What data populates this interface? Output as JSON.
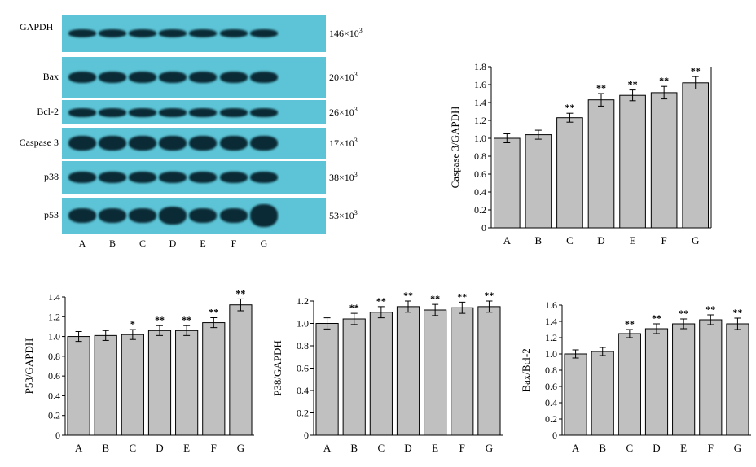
{
  "blot": {
    "rows": [
      {
        "label": "GAPDH",
        "mw": "146×10",
        "exp": "3"
      },
      {
        "label": "Bax",
        "mw": "20×10",
        "exp": "3"
      },
      {
        "label": "Bcl-2",
        "mw": "26×10",
        "exp": "3"
      },
      {
        "label": "Caspase 3",
        "mw": "17×10",
        "exp": "3"
      },
      {
        "label": "p38",
        "mw": "38×10",
        "exp": "3"
      },
      {
        "label": "p53",
        "mw": "53×10",
        "exp": "3"
      }
    ],
    "lanes": [
      "A",
      "B",
      "C",
      "D",
      "E",
      "F",
      "G"
    ],
    "colors": {
      "background": "#5cc4d6",
      "band": "#0a2a35"
    }
  },
  "chart_data": [
    {
      "type": "bar",
      "ylabel": "Caspase 3/GAPDH",
      "categories": [
        "A",
        "B",
        "C",
        "D",
        "E",
        "F",
        "G"
      ],
      "values": [
        1.0,
        1.04,
        1.23,
        1.43,
        1.48,
        1.51,
        1.62
      ],
      "errors": [
        0.05,
        0.05,
        0.05,
        0.07,
        0.06,
        0.07,
        0.07
      ],
      "annotations": [
        "",
        "",
        "**",
        "**",
        "**",
        "**",
        "**"
      ],
      "ylim": [
        0,
        1.8
      ],
      "yticks": [
        "0",
        "0.2",
        "0.4",
        "0.6",
        "0.8",
        "1.0",
        "1.2",
        "1.4",
        "1.6",
        "1.8"
      ],
      "bar_color": "#c0c0c0"
    },
    {
      "type": "bar",
      "ylabel": "P53/GAPDH",
      "categories": [
        "A",
        "B",
        "C",
        "D",
        "E",
        "F",
        "G"
      ],
      "values": [
        1.0,
        1.01,
        1.02,
        1.06,
        1.06,
        1.14,
        1.32
      ],
      "errors": [
        0.05,
        0.05,
        0.05,
        0.05,
        0.05,
        0.05,
        0.06
      ],
      "annotations": [
        "",
        "",
        "*",
        "**",
        "**",
        "**",
        "**"
      ],
      "ylim": [
        0,
        1.4
      ],
      "yticks": [
        "0",
        "0.2",
        "0.4",
        "0.6",
        "0.8",
        "1.0",
        "1.2",
        "1.4"
      ],
      "bar_color": "#c0c0c0"
    },
    {
      "type": "bar",
      "ylabel": "P38/GAPDH",
      "categories": [
        "A",
        "B",
        "C",
        "D",
        "E",
        "F",
        "G"
      ],
      "values": [
        1.0,
        1.04,
        1.1,
        1.15,
        1.12,
        1.14,
        1.15
      ],
      "errors": [
        0.05,
        0.05,
        0.05,
        0.05,
        0.05,
        0.05,
        0.05
      ],
      "annotations": [
        "",
        "**",
        "**",
        "**",
        "**",
        "**",
        "**"
      ],
      "ylim": [
        0,
        1.2
      ],
      "yticks": [
        "0",
        "0.2",
        "0.4",
        "0.6",
        "0.8",
        "1.0",
        "1.2"
      ],
      "bar_color": "#c0c0c0"
    },
    {
      "type": "bar",
      "ylabel": "Bax/Bcl-2",
      "categories": [
        "A",
        "B",
        "C",
        "D",
        "E",
        "F",
        "G"
      ],
      "values": [
        1.0,
        1.03,
        1.25,
        1.31,
        1.37,
        1.42,
        1.37
      ],
      "errors": [
        0.05,
        0.05,
        0.05,
        0.06,
        0.06,
        0.06,
        0.07
      ],
      "annotations": [
        "",
        "",
        "**",
        "**",
        "**",
        "**",
        "**"
      ],
      "ylim": [
        0,
        1.6
      ],
      "yticks": [
        "0",
        "0.2",
        "0.4",
        "0.6",
        "0.8",
        "1.0",
        "1.2",
        "1.4",
        "1.6"
      ],
      "bar_color": "#c0c0c0"
    }
  ]
}
